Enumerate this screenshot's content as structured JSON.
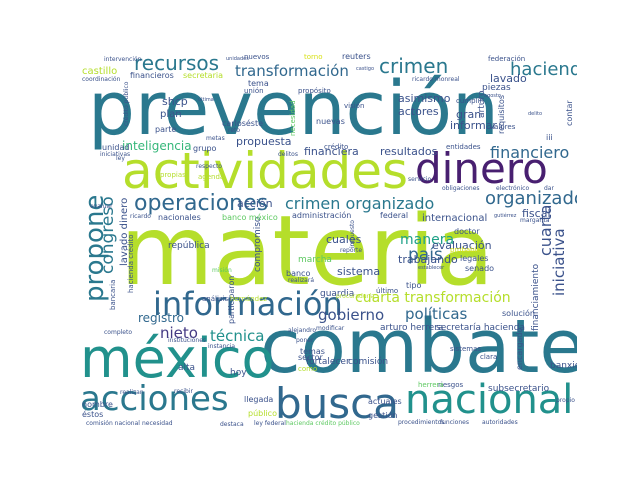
{
  "palette": {
    "teal": "#2a788e",
    "teal2": "#21918c",
    "blue": "#31688e",
    "navy": "#3b528b",
    "indigo": "#443a83",
    "purple": "#481f70",
    "green": "#35b779",
    "lime": "#b5de2b",
    "yellowgreen": "#d8e219",
    "mint": "#5ec962",
    "seafoam": "#1fa187"
  },
  "words": {
    "prevencion": "prevención",
    "materia": "materia",
    "combate": "combate",
    "actividades": "actividades",
    "mexico": "méxico",
    "dinero": "dinero",
    "nacional": "nacional",
    "busca": "busca",
    "acciones": "acciones",
    "informacion": "información",
    "propone": "propone",
    "operaciones": "operaciones",
    "crimen_organizado": "crimen organizado",
    "recursos": "recursos",
    "transformacion": "transformación",
    "crimen": "crimen",
    "hacienda": "hacienda",
    "financiero": "financiero",
    "organizado": "organizado",
    "cuarta_transformacion": "cuarta transformación",
    "iniciativa": "iniciativa",
    "gobierno": "gobierno",
    "politicas": "políticas",
    "pais": "país",
    "manera": "manera",
    "cuarta": "cuarta",
    "congreso": "congreso",
    "nieto": "nieto",
    "tecnica": "técnica",
    "registro": "registro",
    "inteligencia": "inteligencia",
    "propuesta": "propuesta",
    "financiera": "financiera",
    "resultados": "resultados",
    "lavado": "lavado",
    "actores": "actores",
    "asimismo": "asimismo",
    "gran": "gran",
    "informar": "informar",
    "cuales": "cuales",
    "sistema": "sistema",
    "evaluacion": "evaluación",
    "trabajando": "trabajando",
    "fiscal": "fiscal",
    "accion": "acción",
    "guardia": "guardia",
    "shcp": "shcp",
    "plan": "plan",
    "castillo": "castillo",
    "internacional": "internacional",
    "financiamiento": "financiamiento",
    "fortalecer": "fortalecer",
    "comision": "comisión",
    "banxico": "banxico",
    "hoy": "hoy",
    "alta": "alta",
    "republica": "república",
    "compromiso": "compromiso",
    "participaron": "participaron",
    "lavado_dinero": "lavado dinero",
    "arturo_herrera": "arturo herrera",
    "secretaria_hacienda": "secretaría hacienda",
    "subsecretario": "subsecretario",
    "encargado": "encargado",
    "marcha": "marcha",
    "piezas": "piezas",
    "reuters": "reuters",
    "federacion": "federación",
    "nuevos": "nuevos",
    "torno": "torno",
    "tema": "tema",
    "union": "unión",
    "financieros": "financieros",
    "secretaria": "secretaria",
    "parte": "parte",
    "unidad": "unidad",
    "grupo": "grupo",
    "carloseste": "carloséste",
    "nuevas": "nuevas",
    "credito": "crédito",
    "entidades": "entidades",
    "arturo": "arturo",
    "requisitos": "requisitos",
    "contar": "contar",
    "valores": "valores",
    "vision": "visión",
    "cumplir": "cumplir",
    "proposito": "propósito",
    "necesidad": "necesidad",
    "administracion": "administración",
    "banco_mexico": "banco méxico",
    "nacionales": "nacionales",
    "federal": "federal",
    "doctor": "doctor",
    "legales": "legales",
    "senado": "senado",
    "probable": "probable",
    "banco": "banco",
    "sector": "sector",
    "temas": "temas",
    "llegada": "llegada",
    "publico": "público",
    "actuales": "actuales",
    "gestion": "gestión",
    "riesgos": "riesgos",
    "herrera": "herrera",
    "sistemas": "sistemas",
    "clara": "clara",
    "solucion": "solución",
    "nombre": "nombre",
    "estos": "éstos",
    "par": "par",
    "comision_nacional": "comisión nacional",
    "necesidad_b": "necesidad",
    "destaca": "destaca",
    "ley_federal": "ley federal",
    "procedimientos": "procedimientos",
    "funciones": "funciones",
    "autoridades": "autoridades",
    "ricardo_monreal": "ricardo monreal",
    "intervencion": "intervención",
    "coordinacion": "coordinación",
    "iniciativas": "iniciativas",
    "agenda": "agenda",
    "propias": "propias",
    "ultimo": "último",
    "tipo": "tipo",
    "hacienda_credito": "hacienda crédito",
    "analisis": "análisis",
    "hernandez": "hernández",
    "instancia": "instancia",
    "realizan": "realizan",
    "recibir": "recibir",
    "ley": "ley",
    "ricardo": "ricardo",
    "bancaria": "bancaria",
    "completo": "completo",
    "instituciones": "instituciones",
    "evaluar": "evaluar",
    "iii": "iii",
    "metas": "metas",
    "servicio": "servicio",
    "obligaciones": "obligaciones",
    "margarita": "margarita",
    "electronico": "electrónico",
    "dar": "dar",
    "reto": "reto",
    "respecto": "respecto",
    "delitos": "delitos",
    "modificar": "modificar",
    "alejandro": "alejandro",
    "poner": "poner",
    "procuraduria": "procuraduría",
    "impuesto": "impuesto",
    "mision": "misión",
    "propio": "propio",
    "gutierrez": "gutiérrez",
    "reporte": "reporte",
    "realizara": "realizará",
    "establecer": "establecer",
    "como": "como",
    "unidades": "unidades",
    "castigo": "castigo",
    "ultima": "última",
    "credito_publico": "crédito público",
    "delito": "delito",
    "agosto": "agosto",
    "hacienda_credito_publico": "hacienda crédito público"
  }
}
